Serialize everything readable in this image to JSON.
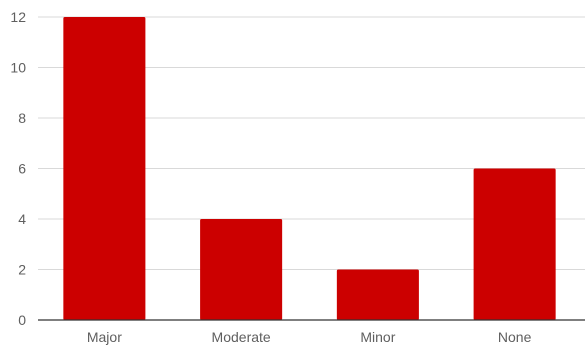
{
  "chart_data": {
    "type": "bar",
    "title": "",
    "xlabel": "",
    "ylabel": "",
    "categories": [
      "Major",
      "Moderate",
      "Minor",
      "None"
    ],
    "values": [
      12,
      4,
      2,
      6
    ],
    "ylim": [
      0,
      12
    ],
    "yticks": [
      0,
      2,
      4,
      6,
      8,
      10,
      12
    ],
    "grid": true,
    "legend": "none",
    "colors": {
      "bar": "#cc0000",
      "grid": "#d9d9d9",
      "axis": "#333333",
      "tick_text": "#5f5f5f"
    }
  }
}
